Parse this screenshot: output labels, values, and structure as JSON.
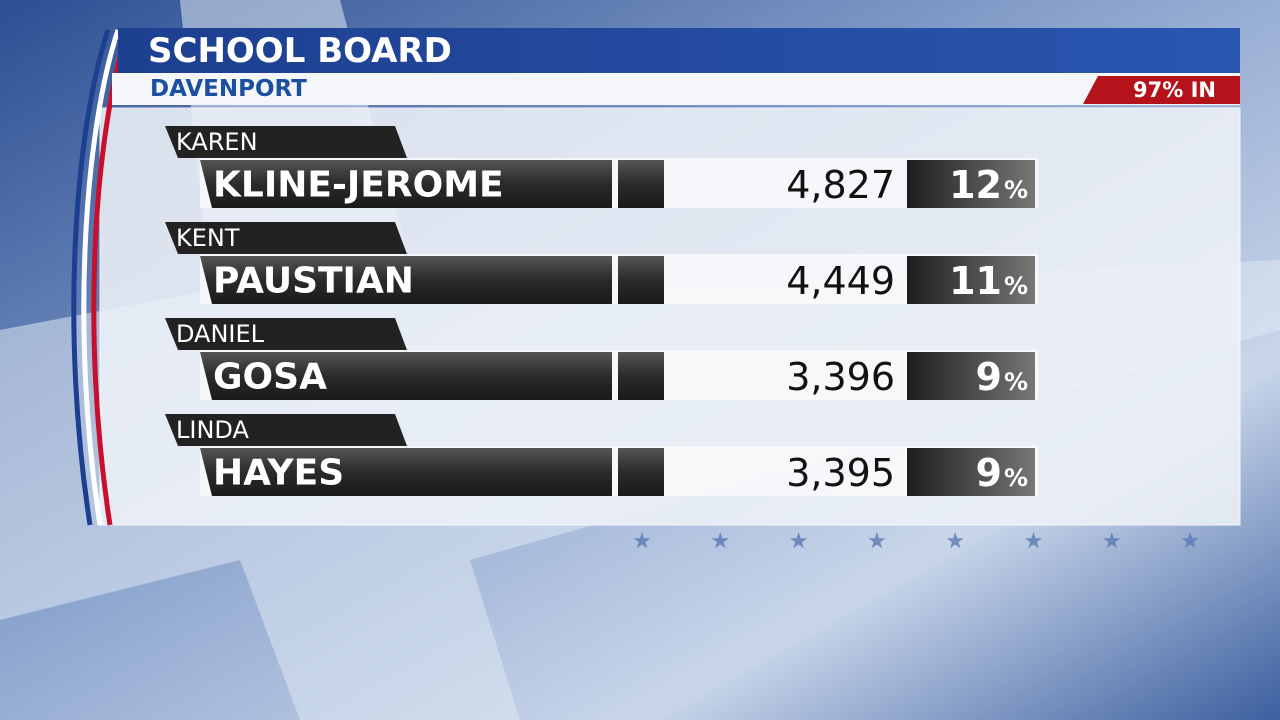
{
  "header": {
    "title": "SCHOOL BOARD",
    "subtitle": "DAVENPORT",
    "reporting": "97% IN"
  },
  "percent_sign": "%",
  "candidates": [
    {
      "first": "KAREN",
      "last": "KLINE-JEROME",
      "votes": "4,827",
      "pct": "12"
    },
    {
      "first": "KENT",
      "last": "PAUSTIAN",
      "votes": "4,449",
      "pct": "11"
    },
    {
      "first": "DANIEL",
      "last": "GOSA",
      "votes": "3,396",
      "pct": "9"
    },
    {
      "first": "LINDA",
      "last": "HAYES",
      "votes": "3,395",
      "pct": "9"
    }
  ]
}
